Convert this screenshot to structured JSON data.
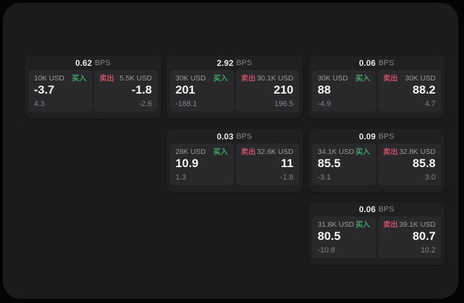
{
  "app": {
    "unit_label": "BPS",
    "buy_label": "买入",
    "sell_label": "卖出"
  },
  "colors": {
    "page_bg": "#040404",
    "panel_bg": "#1b1b1c",
    "card_bg": "#202022",
    "tile_bg": "#29292c",
    "buy_accent": "#3fa26a",
    "sell_accent": "#c4506a",
    "price_text": "#f7f7f7",
    "muted_text": "#9c9c9e"
  },
  "cards": [
    {
      "bps": "0.62",
      "buy": {
        "amount": "10K USD",
        "price": "-3.7",
        "delta": "4.3"
      },
      "sell": {
        "amount": "5.5K USD",
        "price": "-1.8",
        "delta": "-2.6"
      }
    },
    {
      "bps": "2.92",
      "buy": {
        "amount": "30K USD",
        "price": "201",
        "delta": "-188.1"
      },
      "sell": {
        "amount": "30.1K USD",
        "price": "210",
        "delta": "196.5"
      }
    },
    {
      "bps": "0.06",
      "buy": {
        "amount": "30K USD",
        "price": "88",
        "delta": "-4.9"
      },
      "sell": {
        "amount": "30K USD",
        "price": "88.2",
        "delta": "4.7"
      }
    },
    {
      "bps": "0.03",
      "buy": {
        "amount": "28K USD",
        "price": "10.9",
        "delta": "1.3"
      },
      "sell": {
        "amount": "32.6K USD",
        "price": "11",
        "delta": "-1.8"
      }
    },
    {
      "bps": "0.09",
      "buy": {
        "amount": "34.1K USD",
        "price": "85.5",
        "delta": "-3.1"
      },
      "sell": {
        "amount": "32.8K USD",
        "price": "85.8",
        "delta": "3.0"
      }
    },
    {
      "bps": "0.06",
      "buy": {
        "amount": "31.8K USD",
        "price": "80.5",
        "delta": "-10.8"
      },
      "sell": {
        "amount": "39.1K USD",
        "price": "80.7",
        "delta": "10.2"
      }
    }
  ]
}
